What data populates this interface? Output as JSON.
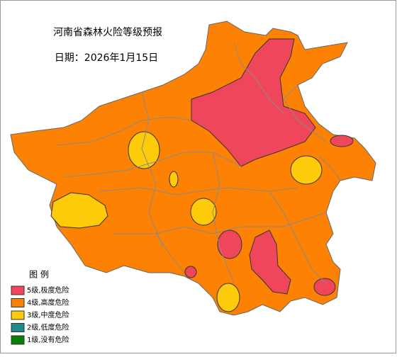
{
  "title": "河南省森林火险等级预报",
  "date": "日期：2026年1月15日",
  "legend": {
    "title": "图 例",
    "items": [
      {
        "label": "5级,极度危险",
        "color": "#f0465c"
      },
      {
        "label": "4级,高度危险",
        "color": "#fd8204"
      },
      {
        "label": "3级,中度危险",
        "color": "#fdcb0a"
      },
      {
        "label": "2级,低度危险",
        "color": "#1f8a8c"
      },
      {
        "label": "1级,没有危险",
        "color": "#0a7d0a"
      }
    ]
  }
}
